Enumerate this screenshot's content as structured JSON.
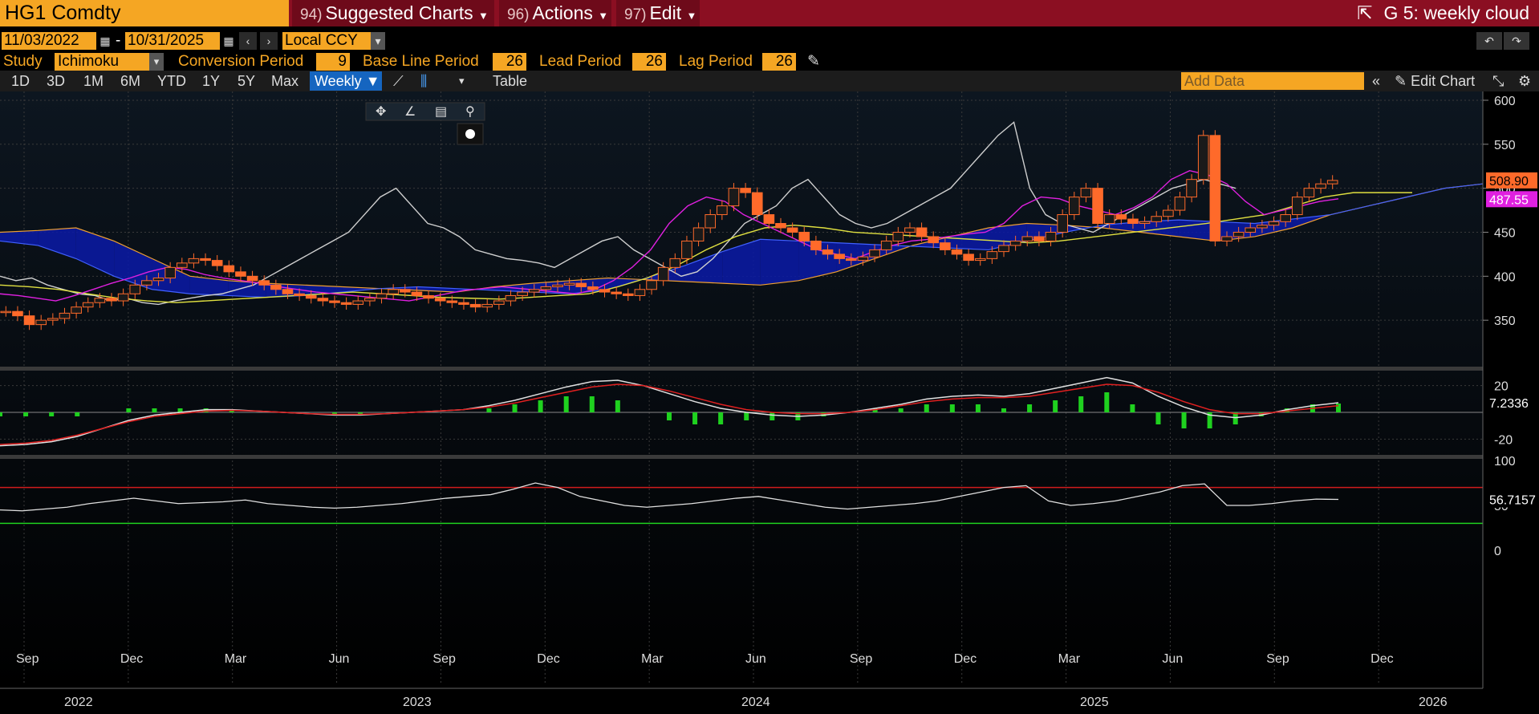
{
  "header": {
    "ticker": "HG1 Comdty",
    "menus": [
      {
        "num": "94)",
        "label": "Suggested Charts"
      },
      {
        "num": "96)",
        "label": "Actions"
      },
      {
        "num": "97)",
        "label": "Edit"
      }
    ],
    "chart_title": "G 5: weekly cloud"
  },
  "toolbar": {
    "start_date": "11/03/2022",
    "end_date": "10/31/2025",
    "date_sep": "-",
    "currency": "Local CCY",
    "study_label": "Study",
    "study_value": "Ichimoku",
    "conversion_label": "Conversion Period",
    "conversion_value": "9",
    "base_label": "Base Line Period",
    "base_value": "26",
    "lead_label": "Lead Period",
    "lead_value": "26",
    "lag_label": "Lag Period",
    "lag_value": "26",
    "ranges": [
      "1D",
      "3D",
      "1M",
      "6M",
      "YTD",
      "1Y",
      "5Y",
      "Max"
    ],
    "frequency": "Weekly",
    "table_label": "Table",
    "add_data_placeholder": "Add Data",
    "edit_chart": "Edit Chart"
  },
  "chart_data": {
    "type": "line",
    "price_panel": {
      "y_ticks": [
        "600",
        "550",
        "500",
        "450",
        "400",
        "350"
      ],
      "last_price_label": "508.90",
      "lagging_label": "487.55",
      "ylim": [
        300,
        610
      ],
      "close_weekly": [
        360,
        355,
        345,
        350,
        352,
        358,
        365,
        370,
        375,
        372,
        380,
        390,
        395,
        398,
        410,
        415,
        420,
        418,
        412,
        405,
        400,
        395,
        390,
        385,
        380,
        378,
        375,
        372,
        370,
        368,
        372,
        375,
        380,
        385,
        382,
        378,
        375,
        372,
        370,
        368,
        365,
        368,
        372,
        378,
        382,
        385,
        388,
        390,
        392,
        388,
        385,
        382,
        380,
        378,
        385,
        395,
        410,
        420,
        440,
        455,
        470,
        480,
        500,
        495,
        470,
        460,
        455,
        450,
        440,
        430,
        425,
        420,
        418,
        422,
        430,
        440,
        450,
        455,
        445,
        438,
        430,
        425,
        418,
        420,
        428,
        435,
        440,
        445,
        440,
        450,
        470,
        490,
        500,
        460,
        470,
        465,
        460,
        462,
        468,
        475,
        490,
        510,
        560,
        440,
        445,
        450,
        455,
        458,
        462,
        470,
        490,
        500,
        505,
        508.9
      ],
      "lagging_line": [
        400,
        395,
        398,
        390,
        385,
        380,
        378,
        372,
        375,
        370,
        368,
        372,
        375,
        378,
        380,
        385,
        390,
        400,
        410,
        420,
        430,
        440,
        450,
        470,
        490,
        500,
        480,
        460,
        455,
        445,
        430,
        425,
        420,
        418,
        415,
        410,
        420,
        430,
        440,
        445,
        430,
        420,
        410,
        400,
        405,
        420,
        440,
        460,
        470,
        480,
        500,
        510,
        490,
        470,
        460,
        455,
        460,
        470,
        480,
        490,
        500,
        520,
        540,
        560,
        575,
        500,
        470,
        460,
        455,
        450,
        460,
        470,
        480,
        490,
        500,
        505,
        510,
        505,
        500
      ],
      "conversion_line": [
        380,
        378,
        375,
        372,
        378,
        385,
        392,
        398,
        405,
        410,
        408,
        402,
        398,
        395,
        392,
        388,
        385,
        382,
        380,
        378,
        376,
        374,
        372,
        376,
        380,
        384,
        386,
        388,
        386,
        384,
        382,
        380,
        385,
        395,
        410,
        430,
        460,
        480,
        490,
        485,
        470,
        460,
        450,
        440,
        430,
        425,
        420,
        428,
        435,
        440,
        442,
        445,
        448,
        450,
        460,
        480,
        490,
        488,
        480,
        475,
        470,
        478,
        490,
        510,
        520,
        515,
        505,
        485,
        470,
        475,
        480,
        485,
        488
      ],
      "base_line": [
        390,
        388,
        385,
        380,
        375,
        372,
        370,
        372,
        374,
        376,
        378,
        380,
        382,
        380,
        378,
        376,
        375,
        374,
        376,
        378,
        380,
        388,
        398,
        412,
        430,
        445,
        455,
        458,
        455,
        450,
        448,
        446,
        444,
        442,
        440,
        438,
        440,
        444,
        448,
        452,
        456,
        460,
        465,
        470,
        480,
        490,
        495,
        495,
        495
      ],
      "cloud_a": [
        450,
        452,
        455,
        440,
        420,
        400,
        395,
        392,
        390,
        388,
        386,
        384,
        382,
        388,
        392,
        395,
        398,
        396,
        394,
        392,
        390,
        395,
        405,
        420,
        435,
        445,
        455,
        460,
        458,
        455,
        450,
        445,
        440,
        445,
        455,
        470,
        480,
        490,
        500,
        505,
        505
      ],
      "cloud_b": [
        440,
        435,
        420,
        400,
        385,
        380,
        378,
        376,
        378,
        382,
        386,
        388,
        386,
        384,
        382,
        380,
        385,
        398,
        412,
        428,
        442,
        440,
        438,
        436,
        434,
        432,
        430,
        440,
        450,
        458,
        462,
        464,
        462,
        460,
        465,
        470,
        480,
        490,
        500,
        505
      ]
    },
    "macd_panel": {
      "y_ticks": [
        "20",
        "-20"
      ],
      "last_label": "7.2336",
      "ylim": [
        -30,
        30
      ],
      "macd": [
        -25,
        -24,
        -22,
        -18,
        -12,
        -6,
        -2,
        0,
        2,
        2,
        1,
        0,
        -1,
        -2,
        -2,
        -1,
        0,
        1,
        2,
        5,
        9,
        14,
        19,
        23,
        24,
        20,
        14,
        8,
        3,
        0,
        -2,
        -3,
        -2,
        0,
        3,
        6,
        10,
        12,
        13,
        12,
        14,
        18,
        22,
        26,
        22,
        12,
        4,
        -2,
        -4,
        -2,
        2,
        5,
        7.2
      ],
      "signal": [
        -24,
        -23,
        -21,
        -17,
        -12,
        -7,
        -3,
        -1,
        1,
        1.5,
        1,
        0,
        -1,
        -1.5,
        -1.5,
        -1,
        0,
        1,
        2,
        4,
        7,
        11,
        15,
        19,
        21,
        20,
        16,
        11,
        6,
        2,
        0,
        -1,
        -1,
        0,
        2,
        5,
        8,
        10,
        11,
        11,
        12,
        15,
        18,
        21,
        20,
        15,
        8,
        2,
        -1,
        -1,
        1,
        3,
        5
      ]
    },
    "rsi_panel": {
      "y_ticks": [
        "100",
        "50",
        "0"
      ],
      "last_label": "56.7157",
      "overbought": 70,
      "oversold": 30,
      "ylim": [
        0,
        100
      ],
      "rsi": [
        45,
        44,
        46,
        48,
        52,
        55,
        58,
        55,
        52,
        53,
        54,
        56,
        52,
        50,
        48,
        47,
        48,
        50,
        52,
        55,
        58,
        60,
        62,
        68,
        75,
        70,
        60,
        55,
        50,
        48,
        50,
        52,
        55,
        58,
        60,
        56,
        52,
        48,
        46,
        48,
        50,
        52,
        55,
        60,
        65,
        70,
        72,
        55,
        50,
        52,
        55,
        60,
        65,
        72,
        74,
        50,
        50,
        52,
        55,
        57,
        56.7
      ]
    },
    "x_month_labels": [
      "Sep",
      "Dec",
      "Mar",
      "Jun",
      "Sep",
      "Dec",
      "Mar",
      "Jun",
      "Sep",
      "Dec",
      "Mar",
      "Jun",
      "Sep",
      "Dec"
    ],
    "x_year_labels": [
      "2022",
      "2023",
      "2024",
      "2025",
      "2026"
    ]
  }
}
